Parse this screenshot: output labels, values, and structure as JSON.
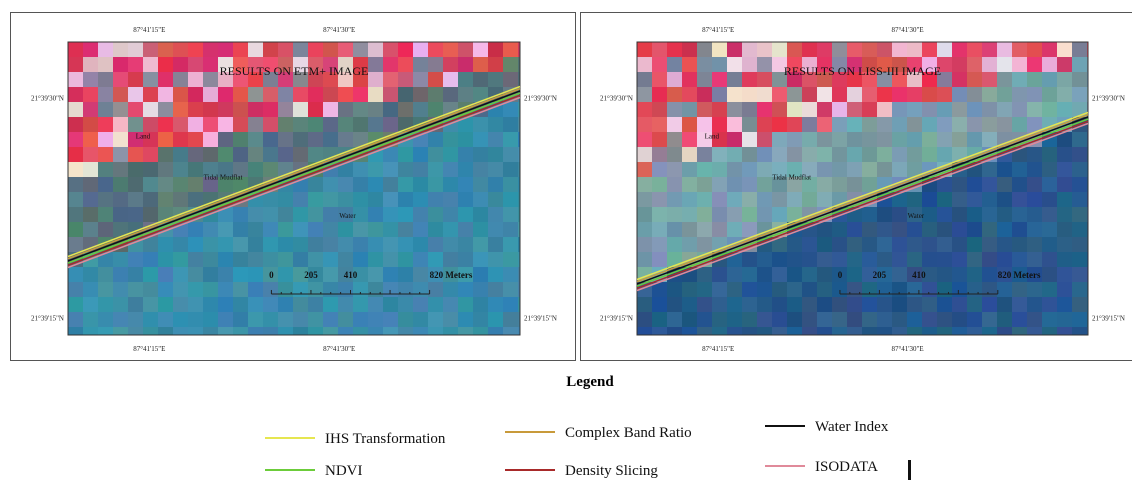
{
  "panels": [
    {
      "title": "RESULTS ON ETM+ IMAGE",
      "top_ticks": [
        "87°41'15\"E",
        "87°41'30\"E"
      ],
      "bottom_ticks": [
        "87°41'15\"E",
        "87°41'30\"E"
      ],
      "left_ticks": [
        "21°39'30\"N",
        "21°39'15\"N"
      ],
      "right_ticks": [
        "21°39'30\"N",
        "21°39'15\"N"
      ],
      "regions": [
        "Land",
        "Tidal Mudflat",
        "Water"
      ],
      "scale": [
        "0",
        "205",
        "410",
        "820 Meters"
      ]
    },
    {
      "title": "RESULTS ON LISS-III IMAGE",
      "top_ticks": [
        "87°41'15\"E",
        "87°41'30\"E"
      ],
      "bottom_ticks": [
        "87°41'15\"E",
        "87°41'30\"E"
      ],
      "left_ticks": [
        "21°39'30\"N",
        "21°39'15\"N"
      ],
      "right_ticks": [
        "21°39'30\"N",
        "21°39'15\"N"
      ],
      "regions": [
        "Land",
        "Tidal Mudflat",
        "Water"
      ],
      "scale": [
        "0",
        "205",
        "410",
        "820 Meters"
      ]
    }
  ],
  "legend": {
    "title": "Legend",
    "items": [
      {
        "label": "IHS Transformation",
        "color": "#e6e650"
      },
      {
        "label": "Complex Band Ratio",
        "color": "#c89a3a"
      },
      {
        "label": "Water Index",
        "color": "#111111"
      },
      {
        "label": "NDVI",
        "color": "#6ccc3a"
      },
      {
        "label": "Density Slicing",
        "color": "#a82a2a"
      },
      {
        "label": "ISODATA",
        "color": "#e08a9a"
      }
    ]
  }
}
